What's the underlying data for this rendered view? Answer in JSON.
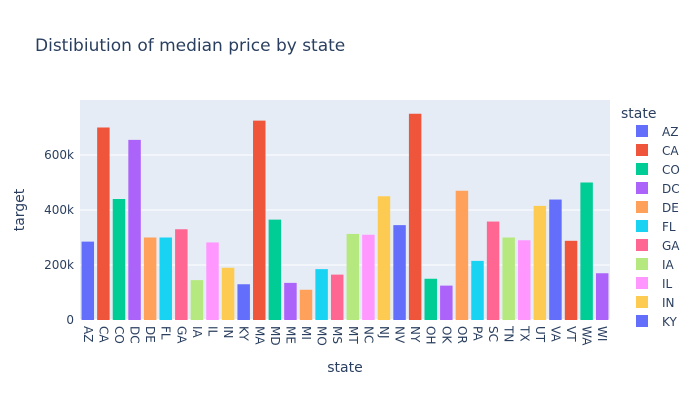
{
  "chart_data": {
    "type": "bar",
    "title": "Distibiution of median price by state",
    "xlabel": "state",
    "ylabel": "target",
    "ylim": [
      0,
      800000
    ],
    "y_ticks": [
      0,
      200000,
      400000,
      600000
    ],
    "y_tick_labels": [
      "0",
      "200k",
      "400k",
      "600k"
    ],
    "grid": true,
    "legend_title": "state",
    "legend_placement": "right",
    "legend_visible_entries": [
      "AZ",
      "CA",
      "CO",
      "DC",
      "DE",
      "FL",
      "GA",
      "IA",
      "IL",
      "IN",
      "KY"
    ],
    "categories": [
      "AZ",
      "CA",
      "CO",
      "DC",
      "DE",
      "FL",
      "GA",
      "IA",
      "IL",
      "IN",
      "KY",
      "MA",
      "MD",
      "ME",
      "MI",
      "MO",
      "MS",
      "MT",
      "NC",
      "NJ",
      "NV",
      "NY",
      "OH",
      "OK",
      "OR",
      "PA",
      "SC",
      "TN",
      "TX",
      "UT",
      "VA",
      "VT",
      "WA",
      "WI"
    ],
    "values": [
      285000,
      700000,
      440000,
      655000,
      300000,
      300000,
      330000,
      145000,
      282000,
      190000,
      130000,
      725000,
      365000,
      135000,
      110000,
      185000,
      165000,
      313000,
      310000,
      450000,
      345000,
      750000,
      150000,
      125000,
      470000,
      215000,
      358000,
      300000,
      290000,
      415000,
      438000,
      288000,
      500000,
      170000
    ],
    "colors": [
      "#636efa",
      "#EF553B",
      "#00cc96",
      "#ab63fa",
      "#FFA15A",
      "#19d3f3",
      "#FF6692",
      "#B6E880",
      "#FF97FF",
      "#FECB52"
    ]
  }
}
